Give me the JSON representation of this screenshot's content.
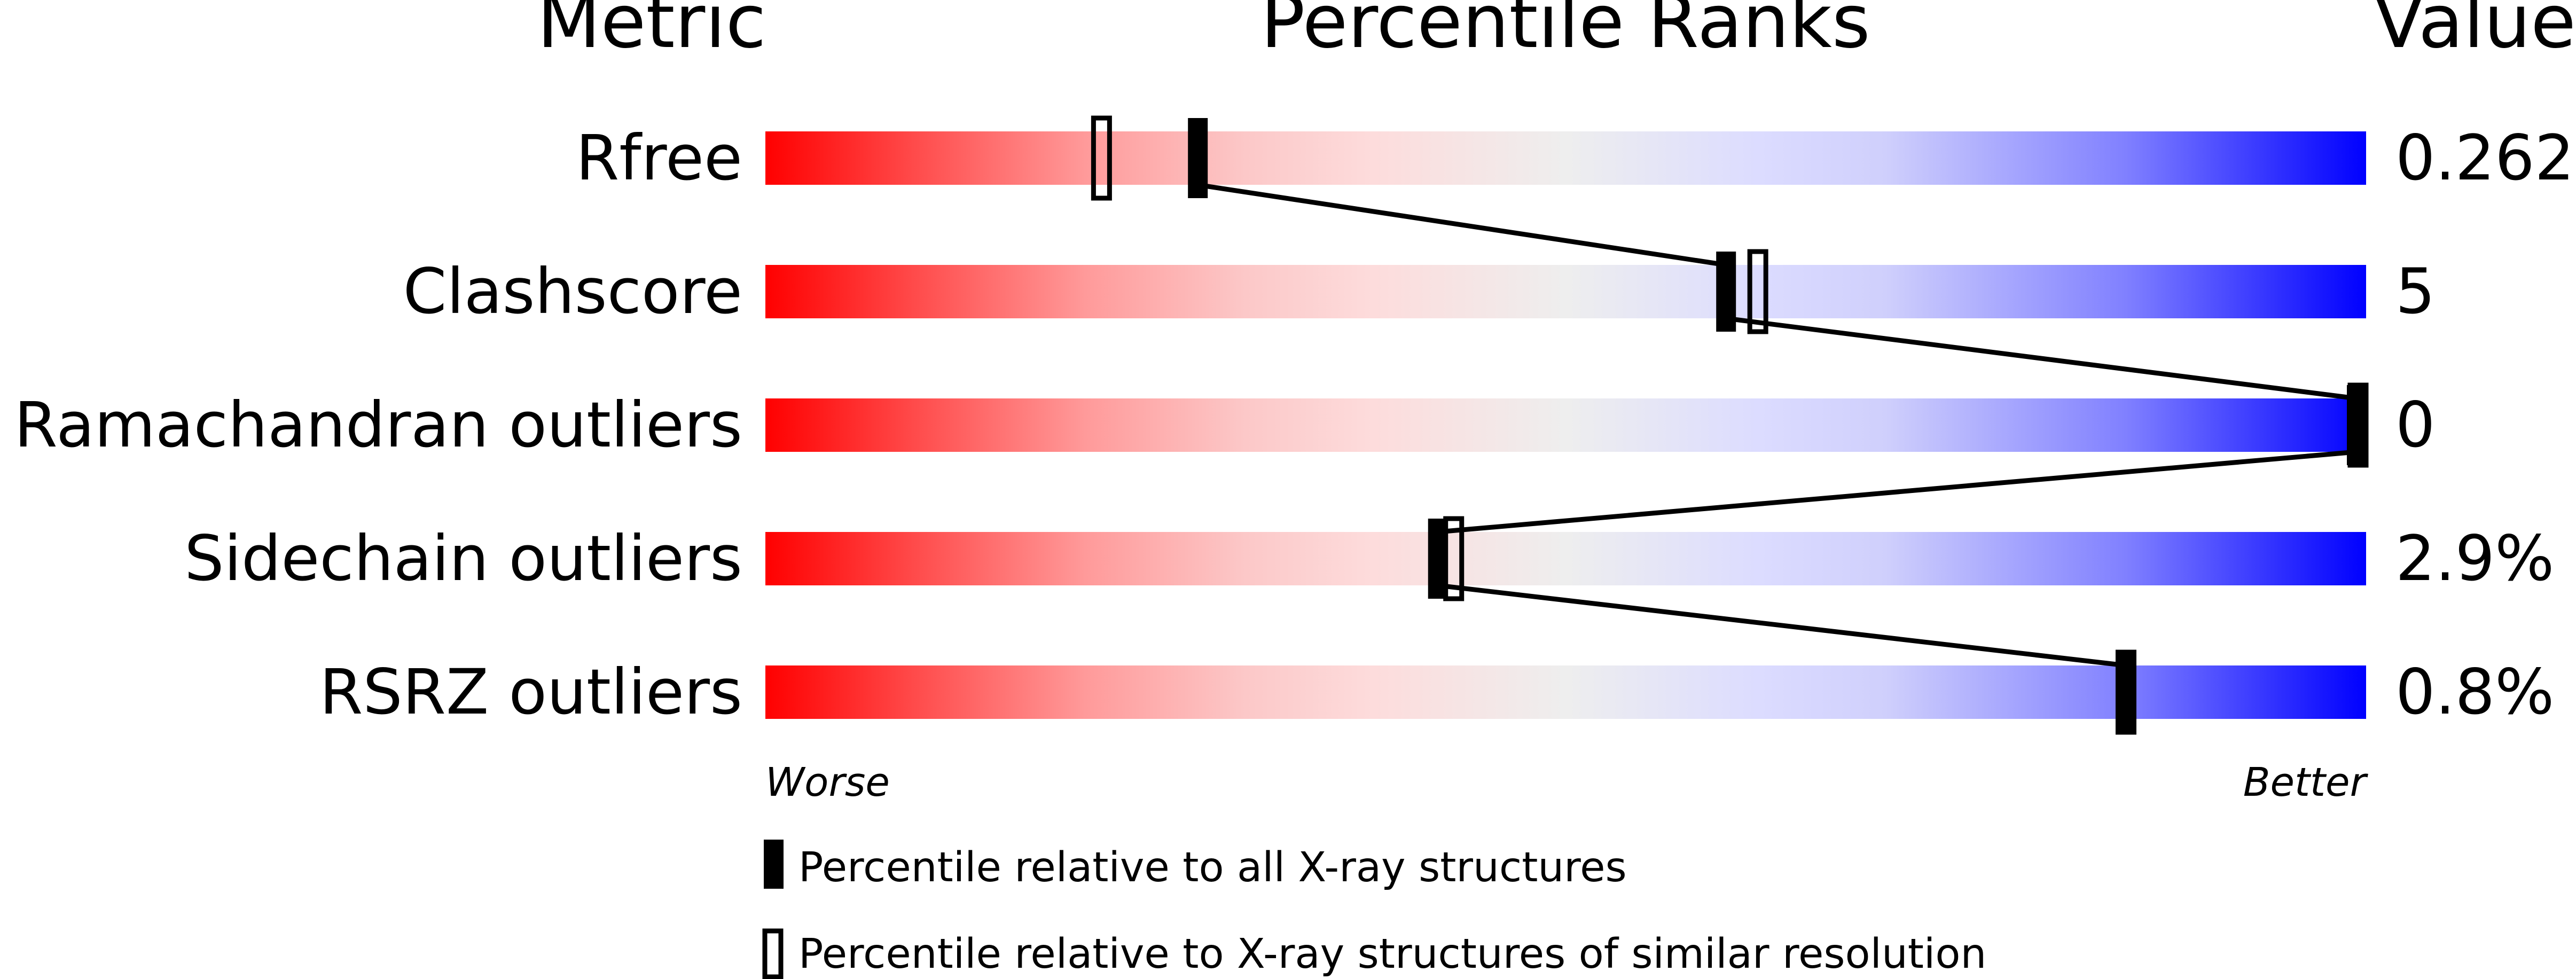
{
  "chart_data": {
    "type": "percentile-bar",
    "headers": {
      "metric": "Metric",
      "ranks": "Percentile Ranks",
      "value": "Value"
    },
    "axis": {
      "worse": "Worse",
      "better": "Better",
      "range": [
        0,
        100
      ]
    },
    "metrics": [
      {
        "name": "Rfree",
        "value": "0.262",
        "percentile_all": 27,
        "percentile_similar": 21
      },
      {
        "name": "Clashscore",
        "value": "5",
        "percentile_all": 60,
        "percentile_similar": 62
      },
      {
        "name": "Ramachandran outliers",
        "value": "0",
        "percentile_all": 100,
        "percentile_similar": 100
      },
      {
        "name": "Sidechain outliers",
        "value": "2.9%",
        "percentile_all": 42,
        "percentile_similar": 43
      },
      {
        "name": "RSRZ outliers",
        "value": "0.8%",
        "percentile_all": 85,
        "percentile_similar": 85
      }
    ],
    "legend": {
      "all": "Percentile relative to all X-ray structures",
      "similar": "Percentile relative to X-ray structures of similar resolution"
    },
    "colors": {
      "worse": "#ff0000",
      "middle": "#eeeeee",
      "better": "#0000ff"
    }
  }
}
